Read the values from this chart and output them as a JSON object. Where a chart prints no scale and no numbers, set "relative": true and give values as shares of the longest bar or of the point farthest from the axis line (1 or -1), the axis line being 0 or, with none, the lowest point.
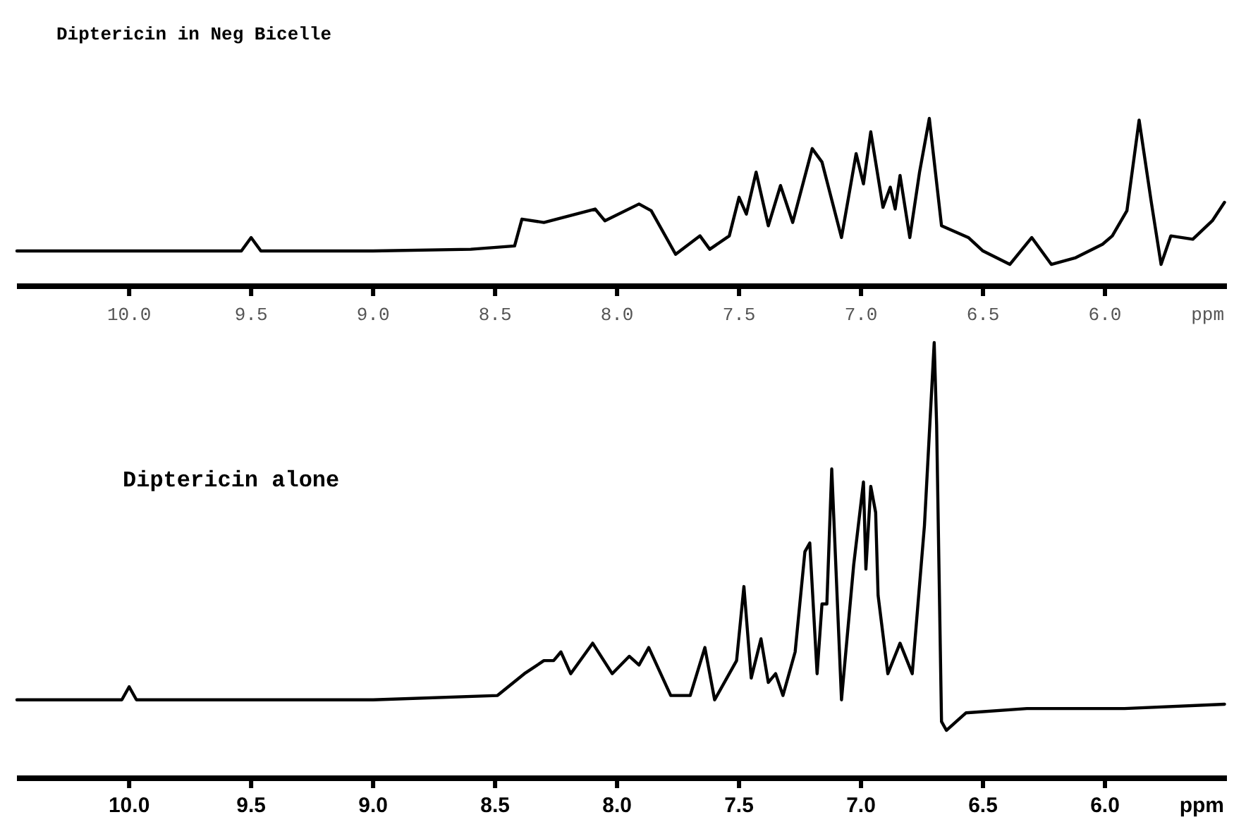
{
  "chart_data": [
    {
      "type": "line",
      "title": "Diptericin in Neg Bicelle",
      "xlabel": "ppm",
      "relative": true,
      "xlim": [
        10.46,
        5.5
      ],
      "xticks": [
        {
          "value": 10,
          "label": "10.0"
        },
        {
          "value": 9.5,
          "label": "9.5"
        },
        {
          "value": 9,
          "label": "9.0"
        },
        {
          "value": 8.5,
          "label": "8.5"
        },
        {
          "value": 8,
          "label": "8.0"
        },
        {
          "value": 7.5,
          "label": "7.5"
        },
        {
          "value": 7,
          "label": "7.0"
        },
        {
          "value": 6.5,
          "label": "6.5"
        },
        {
          "value": 6,
          "label": "6.0"
        }
      ],
      "grid": false,
      "series": [
        {
          "color": "#000000",
          "x": [
            10.46,
            10.2,
            9.95,
            9.54,
            9.5,
            9.46,
            9.0,
            8.6,
            8.42,
            8.39,
            8.3,
            8.09,
            8.05,
            7.91,
            7.86,
            7.76,
            7.66,
            7.62,
            7.54,
            7.5,
            7.47,
            7.43,
            7.38,
            7.33,
            7.28,
            7.2,
            7.16,
            7.08,
            7.02,
            6.99,
            6.96,
            6.91,
            6.88,
            6.86,
            6.84,
            6.8,
            6.76,
            6.72,
            6.67,
            6.56,
            6.5,
            6.39,
            6.3,
            6.22,
            6.12,
            6.01,
            5.97,
            5.91,
            5.86,
            5.81,
            5.77,
            5.73,
            5.64,
            5.56,
            5.51
          ],
          "values": [
            0.21,
            0.21,
            0.21,
            0.21,
            0.29,
            0.21,
            0.21,
            0.22,
            0.24,
            0.4,
            0.38,
            0.46,
            0.39,
            0.49,
            0.45,
            0.19,
            0.3,
            0.22,
            0.3,
            0.53,
            0.43,
            0.68,
            0.36,
            0.6,
            0.38,
            0.82,
            0.74,
            0.29,
            0.79,
            0.61,
            0.92,
            0.47,
            0.59,
            0.46,
            0.66,
            0.29,
            0.68,
            1,
            0.36,
            0.29,
            0.21,
            0.13,
            0.29,
            0.13,
            0.17,
            0.25,
            0.3,
            0.45,
            0.99,
            0.5,
            0.13,
            0.3,
            0.28,
            0.39,
            0.5
          ]
        }
      ]
    },
    {
      "type": "line",
      "title": "Diptericin alone",
      "xlabel": "ppm",
      "relative": true,
      "xlim": [
        10.46,
        5.5
      ],
      "xticks": [
        {
          "value": 10,
          "label": "10.0"
        },
        {
          "value": 9.5,
          "label": "9.5"
        },
        {
          "value": 9,
          "label": "9.0"
        },
        {
          "value": 8.5,
          "label": "8.5"
        },
        {
          "value": 8,
          "label": "8.0"
        },
        {
          "value": 7.5,
          "label": "7.5"
        },
        {
          "value": 7,
          "label": "7.0"
        },
        {
          "value": 6.5,
          "label": "6.5"
        },
        {
          "value": 6,
          "label": "6.0"
        }
      ],
      "grid": false,
      "series": [
        {
          "color": "#000000",
          "x": [
            10.46,
            10.2,
            10.03,
            10.0,
            9.97,
            9.5,
            9.0,
            8.49,
            8.38,
            8.3,
            8.26,
            8.23,
            8.19,
            8.1,
            8.02,
            7.95,
            7.91,
            7.87,
            7.78,
            7.7,
            7.64,
            7.6,
            7.51,
            7.48,
            7.45,
            7.41,
            7.38,
            7.35,
            7.32,
            7.27,
            7.23,
            7.21,
            7.18,
            7.16,
            7.14,
            7.12,
            7.08,
            7.03,
            6.99,
            6.98,
            6.96,
            6.94,
            6.93,
            6.89,
            6.84,
            6.79,
            6.74,
            6.7,
            6.69,
            6.67,
            6.65,
            6.57,
            6.32,
            5.92,
            5.51
          ],
          "values": [
            0.18,
            0.18,
            0.18,
            0.21,
            0.18,
            0.18,
            0.18,
            0.19,
            0.24,
            0.27,
            0.27,
            0.29,
            0.24,
            0.31,
            0.24,
            0.28,
            0.26,
            0.3,
            0.19,
            0.19,
            0.3,
            0.18,
            0.27,
            0.44,
            0.23,
            0.32,
            0.22,
            0.24,
            0.19,
            0.29,
            0.52,
            0.54,
            0.24,
            0.4,
            0.4,
            0.71,
            0.18,
            0.49,
            0.68,
            0.48,
            0.67,
            0.61,
            0.42,
            0.24,
            0.31,
            0.24,
            0.58,
            1,
            0.81,
            0.13,
            0.11,
            0.15,
            0.16,
            0.16,
            0.17
          ]
        }
      ]
    }
  ]
}
